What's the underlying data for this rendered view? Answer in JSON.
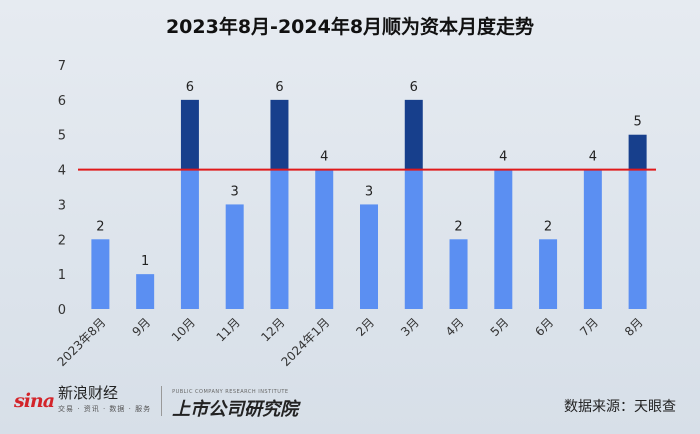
{
  "chart_data": {
    "type": "bar",
    "title": "2023年8月-2024年8月顺为资本月度走势",
    "categories": [
      "2023年8月",
      "9月",
      "10月",
      "11月",
      "12月",
      "2024年1月",
      "2月",
      "3月",
      "4月",
      "5月",
      "6月",
      "7月",
      "8月"
    ],
    "values": [
      2,
      1,
      6,
      3,
      6,
      4,
      3,
      6,
      2,
      4,
      2,
      4,
      5
    ],
    "ylim": [
      0,
      7
    ],
    "yticks": [
      0,
      1,
      2,
      3,
      4,
      5,
      6,
      7
    ],
    "reference_line": 4,
    "grid": false,
    "colors": {
      "bar": "#5b8ff2",
      "above_line": "#173f8c",
      "reference_line": "#e0191b"
    }
  },
  "footer": {
    "sina_logo": "sina",
    "sina_name": "新浪财经",
    "sina_sub": "交易 · 资讯 · 数据 · 服务",
    "institute_name": "上市公司研究院",
    "institute_sub": "PUBLIC COMPANY RESEARCH INSTITUTE",
    "source": "数据来源：天眼查"
  }
}
